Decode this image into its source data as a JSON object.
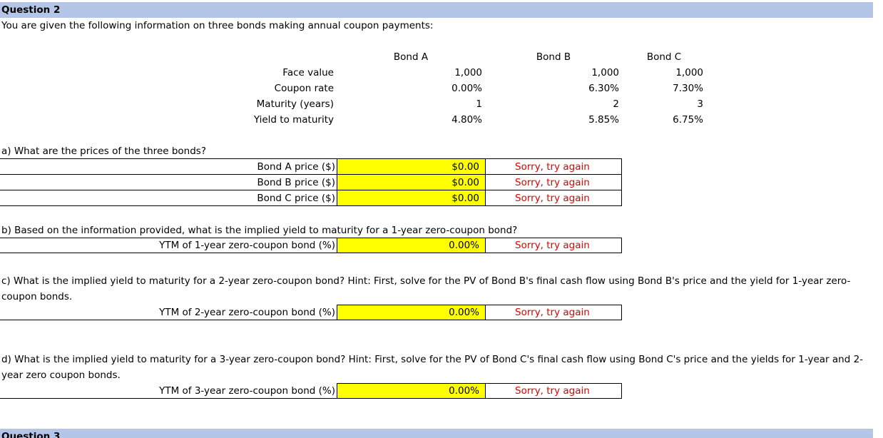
{
  "question2": {
    "heading": "Question 2",
    "intro": "You are given the following information on three bonds making annual coupon payments:"
  },
  "bonds": {
    "headers": [
      "Bond A",
      "Bond B",
      "Bond C"
    ],
    "rows": [
      {
        "label": "Face value",
        "values": [
          "1,000",
          "1,000",
          "1,000"
        ]
      },
      {
        "label": "Coupon rate",
        "values": [
          "0.00%",
          "6.30%",
          "7.30%"
        ]
      },
      {
        "label": "Maturity (years)",
        "values": [
          "1",
          "2",
          "3"
        ]
      },
      {
        "label": "Yield to maturity",
        "values": [
          "4.80%",
          "5.85%",
          "6.75%"
        ]
      }
    ]
  },
  "part_a": {
    "question": "a) What are the prices of the three bonds?",
    "rows": [
      {
        "label": "Bond A price ($)",
        "value": "$0.00",
        "feedback": "Sorry, try again"
      },
      {
        "label": "Bond B price ($)",
        "value": "$0.00",
        "feedback": "Sorry, try again"
      },
      {
        "label": "Bond C price ($)",
        "value": "$0.00",
        "feedback": "Sorry, try again"
      }
    ]
  },
  "part_b": {
    "question": "b) Based on the information provided, what is the implied yield to maturity for a 1-year zero-coupon bond?",
    "label": "YTM of 1-year zero-coupon bond (%)",
    "value": "0.00%",
    "feedback": "Sorry, try again"
  },
  "part_c": {
    "question": "c) What is the implied yield to maturity for a 2-year zero-coupon bond? Hint: First, solve for the PV of Bond B's final cash flow using Bond B's price and the yield for 1-year zero-coupon bonds.",
    "label": "YTM of 2-year zero-coupon bond (%)",
    "value": "0.00%",
    "feedback": "Sorry, try again"
  },
  "part_d": {
    "question": "d) What is the implied yield to maturity for a 3-year zero-coupon bond? Hint: First, solve for the PV of Bond C's final cash flow using Bond C's price and the yields for 1-year and 2-year zero coupon bonds.",
    "label": "YTM of 3-year zero-coupon bond (%)",
    "value": "0.00%",
    "feedback": "Sorry, try again"
  },
  "question3": {
    "heading": "Question 3"
  },
  "colors": {
    "header_bar": "#b4c6e7",
    "input_fill": "#ffff00",
    "feedback": "#e00000"
  }
}
